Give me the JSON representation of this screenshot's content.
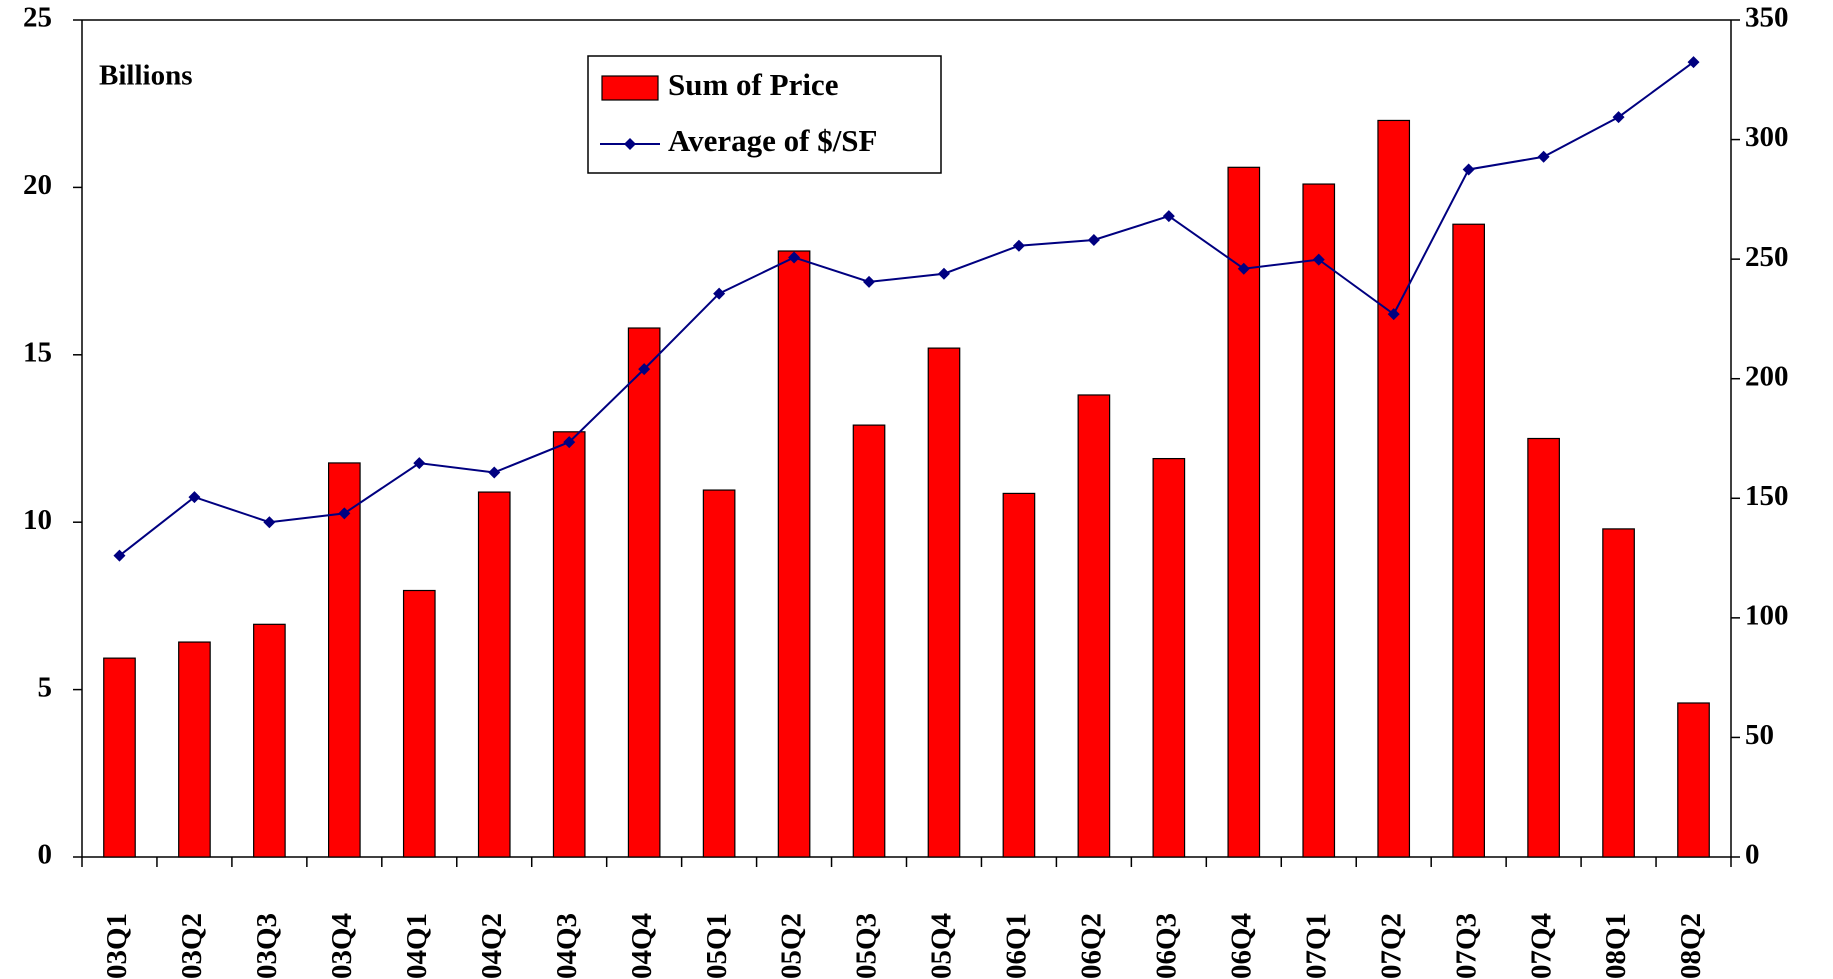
{
  "chart_data": {
    "type": "bar-line",
    "annotation": "Billions",
    "categories": [
      "03Q1",
      "03Q2",
      "03Q3",
      "03Q4",
      "04Q1",
      "04Q2",
      "04Q3",
      "04Q4",
      "05Q1",
      "05Q2",
      "05Q3",
      "05Q4",
      "06Q1",
      "06Q2",
      "06Q3",
      "06Q4",
      "07Q1",
      "07Q2",
      "07Q3",
      "07Q4",
      "08Q1",
      "08Q2"
    ],
    "series": [
      {
        "name": "Sum of Price",
        "type": "bar",
        "color": "#ff0000",
        "values": [
          5.94,
          6.42,
          6.95,
          11.77,
          7.96,
          10.9,
          12.7,
          15.8,
          10.96,
          18.1,
          12.9,
          15.2,
          10.86,
          13.8,
          11.9,
          20.6,
          20.1,
          22.0,
          18.9,
          12.5,
          9.8,
          4.6
        ]
      },
      {
        "name": "Average of $/SF",
        "type": "line",
        "axis": "y2",
        "color": "#000080",
        "values": [
          126,
          150.5,
          140,
          143.7,
          164.7,
          160.8,
          173.5,
          204,
          235.6,
          250.7,
          240.5,
          243.9,
          255.6,
          258,
          268,
          246,
          249.8,
          227,
          287.5,
          292.8,
          309.4,
          332.4
        ]
      }
    ],
    "ylim": [
      0,
      25
    ],
    "yticks": [
      0,
      5,
      10,
      15,
      20,
      25
    ],
    "y2lim": [
      0,
      350
    ],
    "y2ticks": [
      0,
      50,
      100,
      150,
      200,
      250,
      300,
      350
    ],
    "legend": "top-center",
    "grid": false
  }
}
